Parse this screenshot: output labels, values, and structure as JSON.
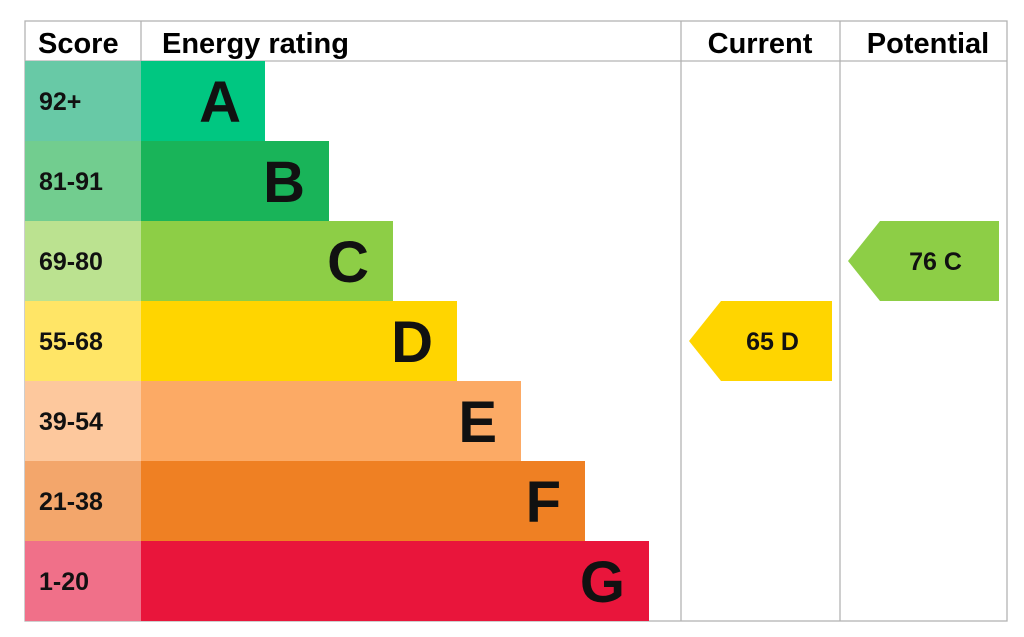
{
  "chart_data": {
    "type": "bar",
    "headers": {
      "score": "Score",
      "rating": "Energy rating",
      "current": "Current",
      "potential": "Potential"
    },
    "bands": [
      {
        "letter": "A",
        "score": "92+",
        "min": 92,
        "max": 100,
        "color": "#00c781",
        "score_bg": "#68c9a6"
      },
      {
        "letter": "B",
        "score": "81-91",
        "min": 81,
        "max": 91,
        "color": "#19b459",
        "score_bg": "#72cd8f"
      },
      {
        "letter": "C",
        "score": "69-80",
        "min": 69,
        "max": 80,
        "color": "#8dce46",
        "score_bg": "#bbe290"
      },
      {
        "letter": "D",
        "score": "55-68",
        "min": 55,
        "max": 68,
        "color": "#ffd500",
        "score_bg": "#ffe566"
      },
      {
        "letter": "E",
        "score": "39-54",
        "min": 39,
        "max": 54,
        "color": "#fcaa65",
        "score_bg": "#fdc89d"
      },
      {
        "letter": "F",
        "score": "21-38",
        "min": 21,
        "max": 38,
        "color": "#ef8023",
        "score_bg": "#f3a66b"
      },
      {
        "letter": "G",
        "score": "1-20",
        "min": 1,
        "max": 20,
        "color": "#e9153b",
        "score_bg": "#f07089"
      }
    ],
    "current": {
      "value": 65,
      "letter": "D",
      "label": "65  D",
      "color": "#ffd500"
    },
    "potential": {
      "value": 76,
      "letter": "C",
      "label": "76  C",
      "color": "#8dce46"
    }
  }
}
